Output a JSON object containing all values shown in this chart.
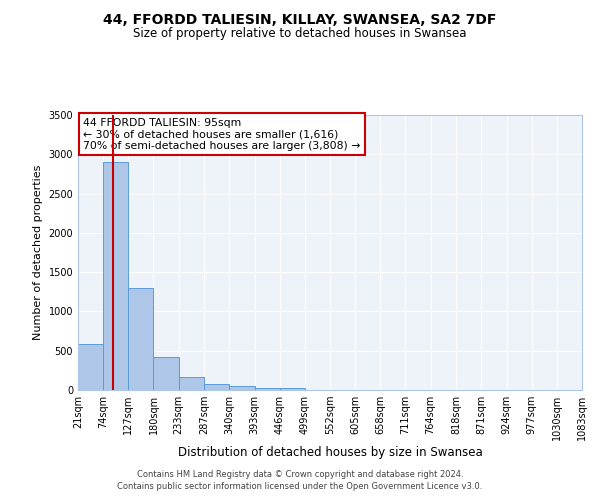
{
  "title": "44, FFORDD TALIESIN, KILLAY, SWANSEA, SA2 7DF",
  "subtitle": "Size of property relative to detached houses in Swansea",
  "xlabel": "Distribution of detached houses by size in Swansea",
  "ylabel": "Number of detached properties",
  "bar_color": "#aec6e8",
  "bar_edge_color": "#5b9bd5",
  "bg_color": "#eef3f9",
  "grid_color": "white",
  "bins": [
    21,
    74,
    127,
    180,
    233,
    287,
    340,
    393,
    446,
    499,
    552,
    605,
    658,
    711,
    764,
    818,
    871,
    924,
    977,
    1030,
    1083
  ],
  "bin_labels": [
    "21sqm",
    "74sqm",
    "127sqm",
    "180sqm",
    "233sqm",
    "287sqm",
    "340sqm",
    "393sqm",
    "446sqm",
    "499sqm",
    "552sqm",
    "605sqm",
    "658sqm",
    "711sqm",
    "764sqm",
    "818sqm",
    "871sqm",
    "924sqm",
    "977sqm",
    "1030sqm",
    "1083sqm"
  ],
  "values": [
    580,
    2900,
    1300,
    420,
    170,
    80,
    55,
    30,
    20,
    5,
    0,
    0,
    0,
    0,
    0,
    0,
    0,
    0,
    0,
    0
  ],
  "property_size": 95,
  "vline_color": "#cc0000",
  "ylim": [
    0,
    3500
  ],
  "yticks": [
    0,
    500,
    1000,
    1500,
    2000,
    2500,
    3000,
    3500
  ],
  "annotation_text": "44 FFORDD TALIESIN: 95sqm\n← 30% of detached houses are smaller (1,616)\n70% of semi-detached houses are larger (3,808) →",
  "annotation_box_color": "white",
  "annotation_box_edgecolor": "#cc0000",
  "footnote1": "Contains HM Land Registry data © Crown copyright and database right 2024.",
  "footnote2": "Contains public sector information licensed under the Open Government Licence v3.0.",
  "title_fontsize": 10,
  "subtitle_fontsize": 8.5,
  "xlabel_fontsize": 8.5,
  "ylabel_fontsize": 8,
  "tick_fontsize": 7,
  "footnote_fontsize": 6
}
